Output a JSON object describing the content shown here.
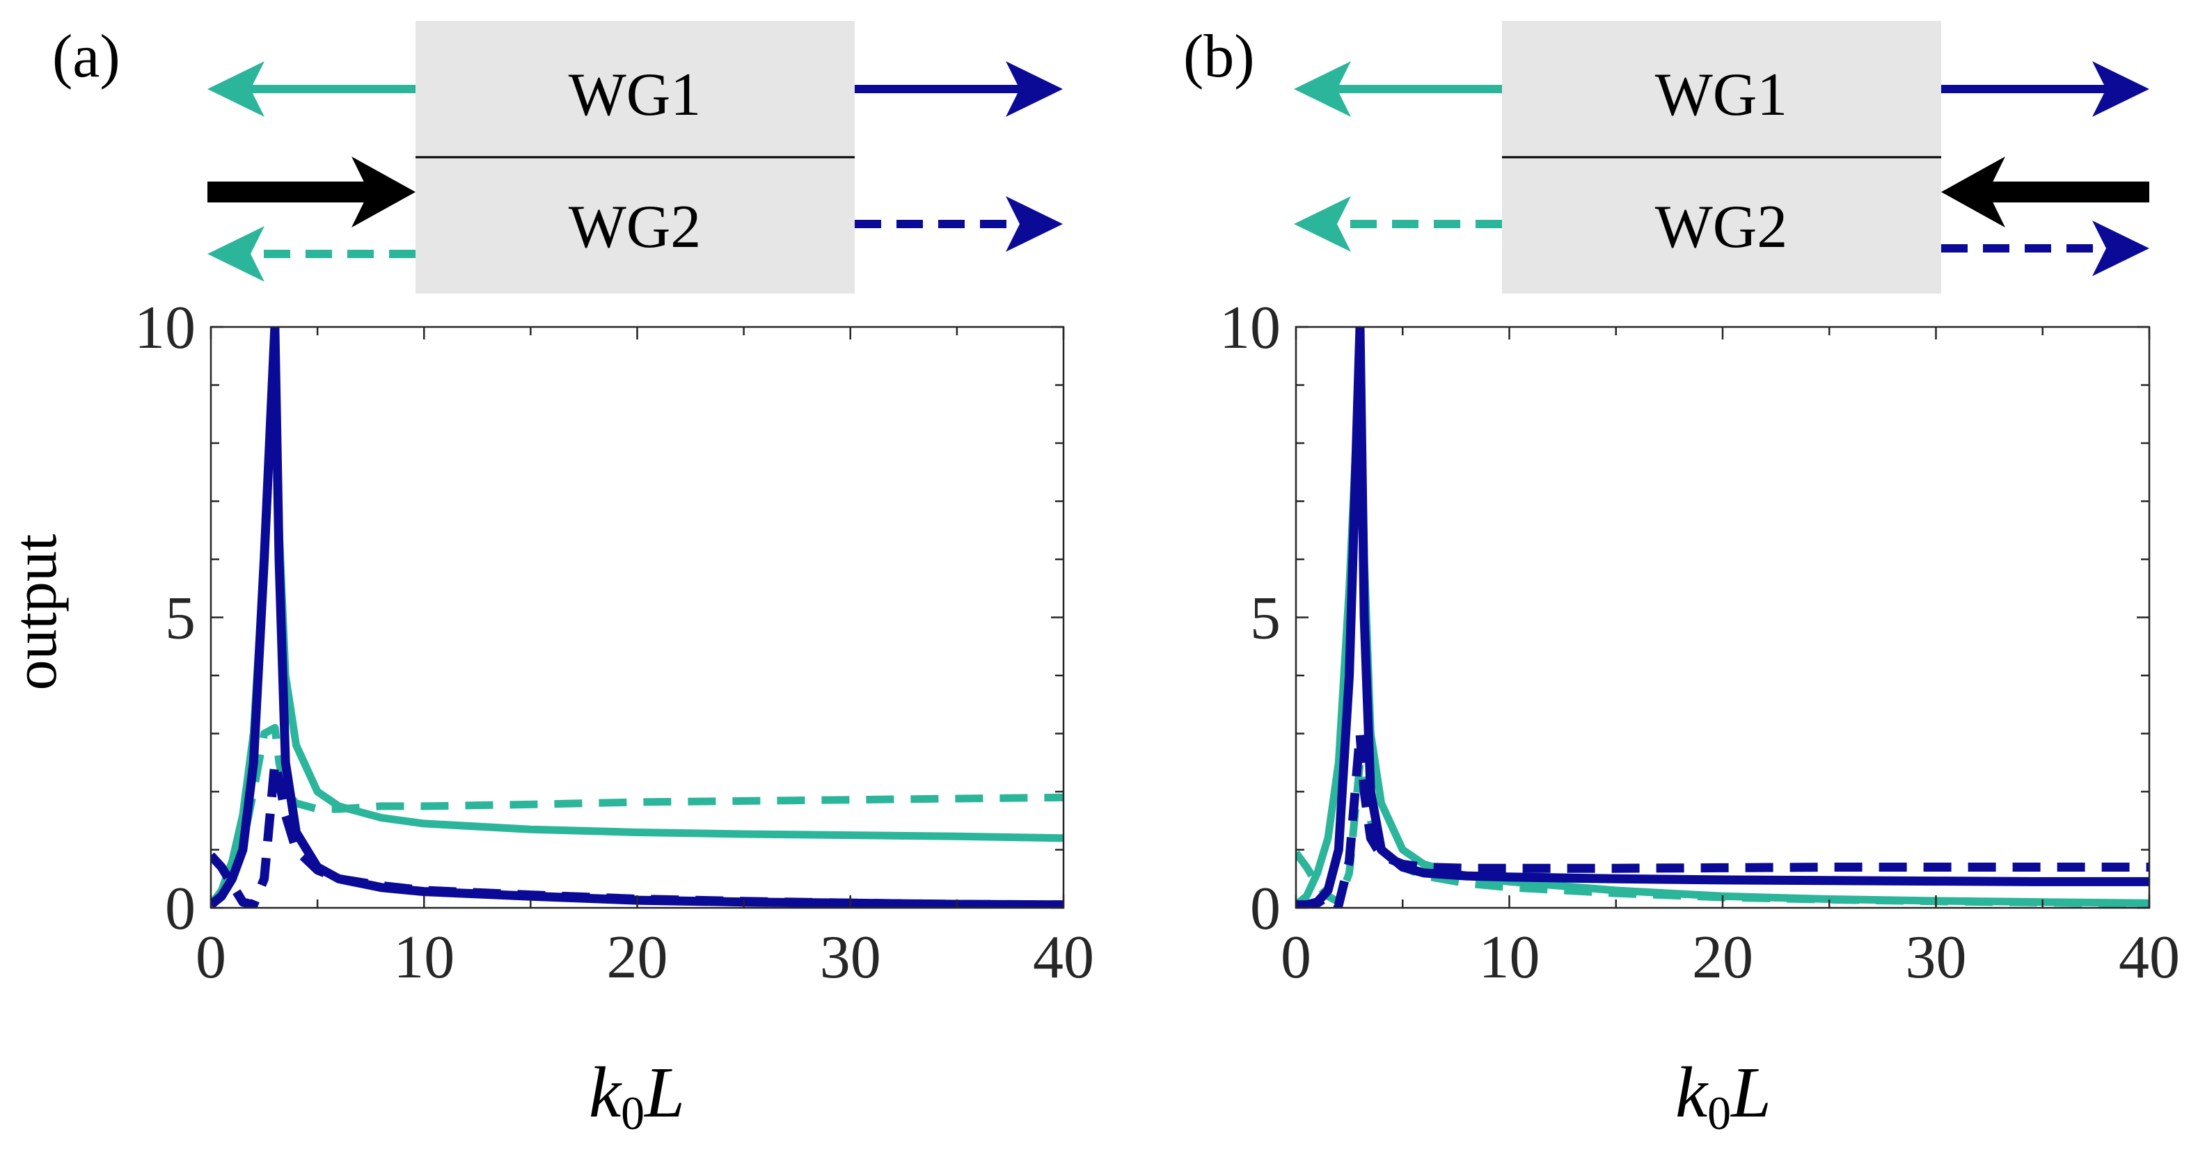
{
  "panels": [
    {
      "label": "(a)",
      "wg1": "WG1",
      "wg2": "WG2",
      "input_direction": "right"
    },
    {
      "label": "(b)",
      "wg1": "WG1",
      "wg2": "WG2",
      "input_direction": "left"
    }
  ],
  "colors": {
    "teal": "#2bb59a",
    "navy": "#0a0a96",
    "black": "#000000",
    "box": "#e6e6e6"
  },
  "chart_data": [
    {
      "type": "line",
      "ylabel": "output",
      "xlabel": "k0L",
      "xlim": [
        0,
        40
      ],
      "ylim": [
        0,
        10
      ],
      "xticks": [
        0,
        10,
        20,
        30,
        40
      ],
      "yticks": [
        0,
        5,
        10
      ],
      "x": [
        0,
        0.5,
        1,
        1.5,
        2,
        2.5,
        3,
        3.2,
        3.5,
        4,
        5,
        6,
        8,
        10,
        15,
        20,
        25,
        30,
        35,
        40
      ],
      "series": [
        {
          "style": "teal-solid",
          "values": [
            0.05,
            0.3,
            0.8,
            1.6,
            3.0,
            6.0,
            9.8,
            6.5,
            4.0,
            2.8,
            2.0,
            1.75,
            1.55,
            1.45,
            1.35,
            1.3,
            1.27,
            1.25,
            1.23,
            1.2
          ]
        },
        {
          "style": "teal-dashed",
          "values": [
            0.05,
            0.2,
            0.6,
            1.1,
            2.0,
            3.0,
            3.1,
            2.5,
            2.0,
            1.8,
            1.7,
            1.7,
            1.75,
            1.75,
            1.78,
            1.82,
            1.84,
            1.86,
            1.88,
            1.9
          ]
        },
        {
          "style": "navy-solid",
          "values": [
            0.05,
            0.2,
            0.5,
            1.0,
            2.5,
            6.0,
            10.0,
            6.0,
            2.5,
            1.3,
            0.7,
            0.5,
            0.35,
            0.28,
            0.2,
            0.13,
            0.1,
            0.08,
            0.06,
            0.05
          ]
        },
        {
          "style": "navy-dashed",
          "values": [
            0.9,
            0.7,
            0.4,
            0.1,
            0.05,
            0.5,
            2.5,
            2.2,
            1.6,
            1.0,
            0.65,
            0.5,
            0.38,
            0.3,
            0.22,
            0.15,
            0.11,
            0.08,
            0.06,
            0.05
          ]
        }
      ]
    },
    {
      "type": "line",
      "ylabel": "",
      "xlabel": "k0L",
      "xlim": [
        0,
        40
      ],
      "ylim": [
        0,
        10
      ],
      "xticks": [
        0,
        10,
        20,
        30,
        40
      ],
      "yticks": [
        0,
        5,
        10
      ],
      "x": [
        0,
        0.5,
        1,
        1.5,
        2,
        2.5,
        3,
        3.2,
        3.5,
        4,
        5,
        6,
        8,
        10,
        15,
        20,
        25,
        30,
        35,
        40
      ],
      "series": [
        {
          "style": "teal-solid",
          "values": [
            0.05,
            0.2,
            0.6,
            1.2,
            2.5,
            5.5,
            9.5,
            6.0,
            3.0,
            1.8,
            1.0,
            0.75,
            0.55,
            0.45,
            0.3,
            0.2,
            0.15,
            0.12,
            0.1,
            0.08
          ]
        },
        {
          "style": "teal-dashed",
          "values": [
            0.95,
            0.7,
            0.4,
            0.2,
            0.1,
            0.6,
            2.5,
            2.0,
            1.5,
            1.0,
            0.7,
            0.55,
            0.42,
            0.35,
            0.25,
            0.18,
            0.14,
            0.11,
            0.09,
            0.07
          ]
        },
        {
          "style": "navy-solid",
          "values": [
            0.05,
            0.05,
            0.1,
            0.3,
            1.0,
            4.0,
            10.0,
            5.0,
            2.0,
            1.0,
            0.7,
            0.6,
            0.55,
            0.53,
            0.5,
            0.48,
            0.47,
            0.46,
            0.45,
            0.45
          ]
        },
        {
          "style": "navy-dashed",
          "values": [
            0.05,
            0.05,
            0.08,
            0.2,
            0.05,
            0.8,
            3.0,
            2.0,
            1.2,
            0.9,
            0.75,
            0.7,
            0.68,
            0.68,
            0.68,
            0.69,
            0.7,
            0.7,
            0.7,
            0.7
          ]
        }
      ]
    }
  ]
}
